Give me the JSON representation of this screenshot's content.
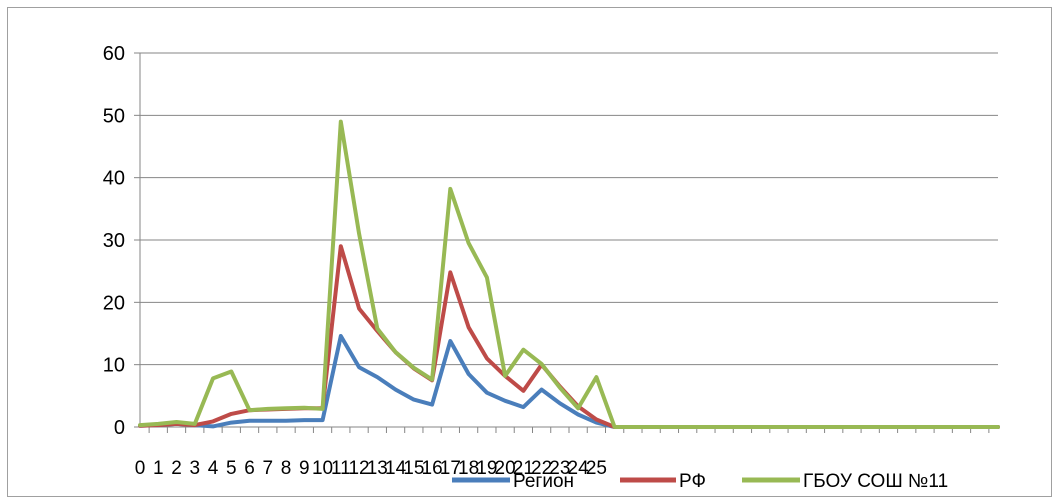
{
  "chart_data": {
    "type": "line",
    "title": "",
    "xlabel": "",
    "ylabel": "",
    "ylim": [
      0,
      60
    ],
    "yticks": [
      0,
      10,
      20,
      30,
      40,
      50,
      60
    ],
    "grid": "horizontal",
    "legend_position": "bottom",
    "x_tick_labels": [
      "0",
      "1",
      "2",
      "3",
      "4",
      "5",
      "6",
      "7",
      "8",
      "9",
      "10",
      "11",
      "12",
      "13",
      "14",
      "15",
      "16",
      "17",
      "18",
      "19",
      "20",
      "21",
      "22",
      "23",
      "24",
      "25"
    ],
    "x": [
      0,
      1,
      2,
      3,
      4,
      5,
      6,
      7,
      8,
      9,
      10,
      11,
      12,
      13,
      14,
      15,
      16,
      17,
      18,
      19,
      20,
      21,
      22,
      23,
      24,
      25,
      26,
      27,
      28,
      29,
      30,
      31,
      32,
      33,
      34,
      35,
      36,
      37,
      38,
      39,
      40,
      41,
      42,
      43,
      44,
      45,
      46,
      47
    ],
    "series": [
      {
        "name": "Регион",
        "color": "#4a7ebb",
        "values": [
          0.2,
          0.3,
          0.5,
          0.3,
          0.1,
          0.7,
          1,
          1,
          1,
          1.1,
          1.1,
          14.6,
          9.6,
          8,
          6,
          4.4,
          3.6,
          13.8,
          8.5,
          5.5,
          4.2,
          3.2,
          6,
          3.8,
          2,
          0.7,
          0,
          0,
          0,
          0,
          0,
          0,
          0,
          0,
          0,
          0,
          0,
          0,
          0,
          0,
          0,
          0,
          0,
          0,
          0,
          0,
          0,
          0
        ]
      },
      {
        "name": "РФ",
        "color": "#be4b48",
        "values": [
          0.2,
          0.3,
          0.5,
          0.3,
          0.9,
          2.1,
          2.7,
          2.8,
          2.9,
          3,
          3,
          29,
          19,
          15.4,
          12,
          9.4,
          7.5,
          24.8,
          16,
          11,
          8.2,
          5.8,
          10,
          6.5,
          3.3,
          1.2,
          0,
          0,
          0,
          0,
          0,
          0,
          0,
          0,
          0,
          0,
          0,
          0,
          0,
          0,
          0,
          0,
          0,
          0,
          0,
          0,
          0,
          0
        ]
      },
      {
        "name": "ГБОУ СОШ №11",
        "color": "#98b954",
        "values": [
          0.3,
          0.5,
          0.8,
          0.5,
          7.8,
          8.9,
          2.7,
          2.9,
          3,
          3.1,
          2.9,
          49,
          31,
          15.8,
          12,
          9.5,
          7.6,
          38.2,
          29.5,
          24,
          8.2,
          12.4,
          10.1,
          6.3,
          3,
          8,
          0,
          0,
          0,
          0,
          0,
          0,
          0,
          0,
          0,
          0,
          0,
          0,
          0,
          0,
          0,
          0,
          0,
          0,
          0,
          0,
          0,
          0
        ]
      }
    ]
  }
}
